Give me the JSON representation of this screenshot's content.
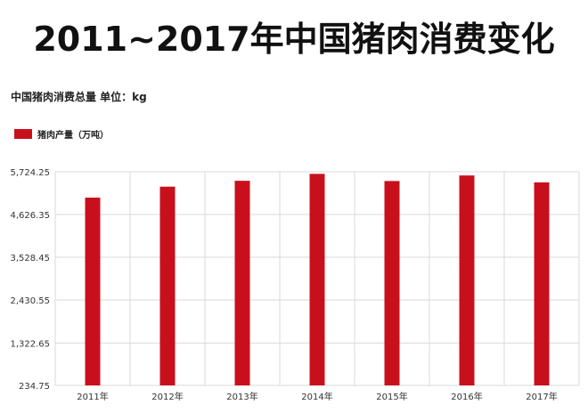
{
  "title": "2011~2017年中国猪肉消费变化",
  "subtitle": "中国猪肉消费总量 单位：kg",
  "colors": {
    "bar": "#c8101c",
    "grid": "#d9d9d9",
    "axis": "#999999"
  },
  "chart_data": {
    "type": "bar",
    "categories": [
      "2011年",
      "2012年",
      "2013年",
      "2014年",
      "2015年",
      "2016年",
      "2017年"
    ],
    "series": [
      {
        "name": "猪肉产量（万吨）",
        "values": [
          5060,
          5342,
          5493,
          5671,
          5487,
          5630,
          5452
        ]
      }
    ],
    "yticks": [
      "234.75",
      "1,322.65",
      "2,430.55",
      "3,528.45",
      "4,626.35",
      "5,724.25"
    ],
    "ylim": [
      234.75,
      5724.25
    ],
    "grid": true,
    "legend": "top-left"
  }
}
